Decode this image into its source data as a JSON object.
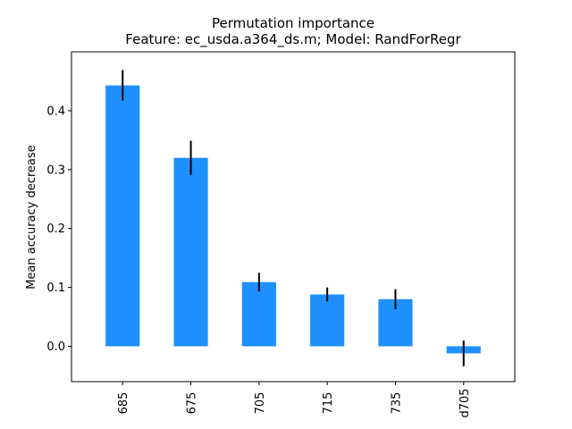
{
  "chart_data": {
    "type": "bar",
    "title": "Permutation importance",
    "subtitle": "Feature: ec_usda.a364_ds.m; Model: RandForRegr",
    "xlabel": "",
    "ylabel": "Mean accuracy decrease",
    "categories": [
      "685",
      "675",
      "705",
      "715",
      "735",
      "d705"
    ],
    "values": [
      0.443,
      0.32,
      0.109,
      0.088,
      0.08,
      -0.012
    ],
    "errors": [
      0.026,
      0.029,
      0.016,
      0.012,
      0.017,
      0.022
    ],
    "ylim": [
      -0.06,
      0.5
    ],
    "yticks": [
      0.0,
      0.1,
      0.2,
      0.3,
      0.4
    ],
    "ytick_labels": [
      "0.0",
      "0.1",
      "0.2",
      "0.3",
      "0.4"
    ],
    "bar_color": "#1e90ff",
    "error_color": "#000000",
    "grid": false,
    "legend": "none"
  }
}
